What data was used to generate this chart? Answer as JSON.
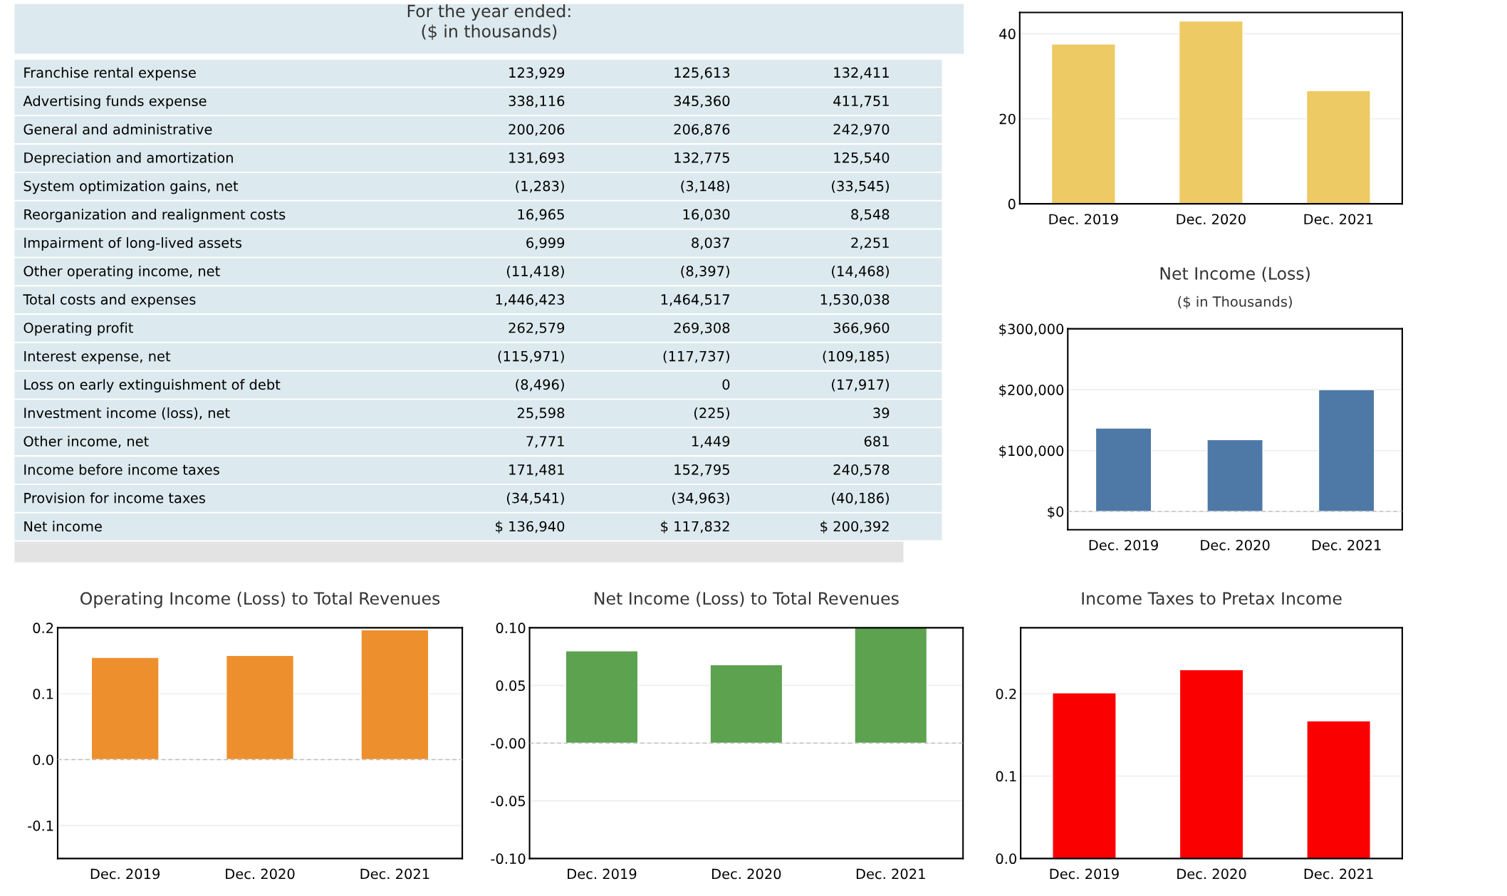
{
  "chart_data": [
    {
      "type": "other",
      "title": "For the year ended:",
      "subtitle": "($ in thousands)",
      "categories": [
        "Franchise rental expense",
        "Advertising funds expense",
        "General and administrative",
        "Depreciation and amortization",
        "System optimization gains, net",
        "Reorganization and realignment costs",
        "Impairment of long-lived assets",
        "Other operating income, net",
        "Total costs and expenses",
        "Operating profit",
        "Interest expense, net",
        "Loss on early extinguishment of debt",
        "Investment income (loss), net",
        "Other income, net",
        "Income before income taxes",
        "Provision for income taxes",
        "Net income"
      ],
      "series": [
        {
          "values": [
            123929,
            338116,
            200206,
            131693,
            -1283,
            16965,
            6999,
            -11418,
            1446423,
            262579,
            -115971,
            -8496,
            25598,
            7771,
            171481,
            -34541,
            136940
          ],
          "value_labels": [
            "123,929",
            "338,116",
            "200,206",
            "131,693",
            "(1,283)",
            "16,965",
            "6,999",
            "(11,418)",
            "1,446,423",
            "262,579",
            "(115,971)",
            "(8,496)",
            "25,598",
            "7,771",
            "171,481",
            "(34,541)",
            "$ 136,940"
          ]
        },
        {
          "values": [
            125613,
            345360,
            206876,
            132775,
            -3148,
            16030,
            8037,
            -8397,
            1464517,
            269308,
            -117737,
            0,
            -225,
            1449,
            152795,
            -34963,
            117832
          ],
          "value_labels": [
            "125,613",
            "345,360",
            "206,876",
            "132,775",
            "(3,148)",
            "16,030",
            "8,037",
            "(8,397)",
            "1,464,517",
            "269,308",
            "(117,737)",
            "0",
            "(225)",
            "1,449",
            "152,795",
            "(34,963)",
            "$ 117,832"
          ]
        },
        {
          "values": [
            132411,
            411751,
            242970,
            125540,
            -33545,
            8548,
            2251,
            -14468,
            1530038,
            366960,
            -109185,
            -17917,
            39,
            681,
            240578,
            -40186,
            200392
          ],
          "value_labels": [
            "132,411",
            "411,751",
            "242,970",
            "125,540",
            "(33,545)",
            "8,548",
            "2,251",
            "(14,468)",
            "1,530,038",
            "366,960",
            "(109,185)",
            "(17,917)",
            "39",
            "681",
            "240,578",
            "(40,186)",
            "$ 200,392"
          ]
        }
      ]
    },
    {
      "type": "bar",
      "categories": [
        "Dec. 2019",
        "Dec. 2020",
        "Dec. 2021"
      ],
      "values": [
        37.6,
        43.0,
        26.6
      ],
      "color": "#edca63",
      "ylim": [
        0,
        45
      ],
      "yticks": [
        0,
        20,
        40
      ],
      "grid": "y"
    },
    {
      "type": "bar",
      "title": "Net Income (Loss)",
      "subtitle": "($ in Thousands)",
      "categories": [
        "Dec. 2019",
        "Dec. 2020",
        "Dec. 2021"
      ],
      "values": [
        137000,
        118000,
        200000
      ],
      "color": "#4e79a7",
      "ylim": [
        -30000,
        300000
      ],
      "yticks": [
        {
          "value": 0,
          "label": "$0"
        },
        {
          "value": 100000,
          "label": "$100,000"
        },
        {
          "value": 200000,
          "label": "$200,000"
        },
        {
          "value": 300000,
          "label": "$300,000"
        }
      ],
      "grid": "y",
      "ref_lines": [
        {
          "axis": "y",
          "value": 0,
          "color": "#bbbbbb",
          "line_style": "dashed"
        }
      ]
    },
    {
      "type": "bar",
      "title": "Operating Income (Loss) to Total Revenues",
      "categories": [
        "Dec. 2019",
        "Dec. 2020",
        "Dec. 2021"
      ],
      "values": [
        0.155,
        0.158,
        0.197
      ],
      "color": "#ee8f2e",
      "ylim": [
        -0.15,
        0.2
      ],
      "yticks": [
        -0.1,
        {
          "value": 0,
          "label": "0.0"
        },
        0.1,
        0.2
      ],
      "grid": "y",
      "ref_lines": [
        {
          "axis": "y",
          "value": 0,
          "color": "#bbbbbb",
          "line_style": "dashed"
        }
      ]
    },
    {
      "type": "bar",
      "title": "Net Income (Loss) to Total Revenues",
      "categories": [
        "Dec. 2019",
        "Dec. 2020",
        "Dec. 2021"
      ],
      "values": [
        0.08,
        0.068,
        0.1
      ],
      "color": "#5ca24f",
      "ylim": [
        -0.1,
        0.1
      ],
      "yticks": [
        {
          "value": -0.1,
          "label": "-0.10"
        },
        -0.05,
        {
          "value": 0,
          "label": "-0.00"
        },
        0.05,
        {
          "value": 0.1,
          "label": "0.10"
        }
      ],
      "grid": "y",
      "ref_lines": [
        {
          "axis": "y",
          "value": 0,
          "color": "#bbbbbb",
          "line_style": "dashed"
        }
      ]
    },
    {
      "type": "bar",
      "title": "Income Taxes to Pretax Income",
      "categories": [
        "Dec. 2019",
        "Dec. 2020",
        "Dec. 2021"
      ],
      "values": [
        0.201,
        0.229,
        0.167
      ],
      "color": "#fa0000",
      "ylim": [
        0,
        0.28
      ],
      "yticks": [
        {
          "value": 0,
          "label": "0.0"
        },
        0.1,
        0.2
      ],
      "grid": "y"
    }
  ]
}
